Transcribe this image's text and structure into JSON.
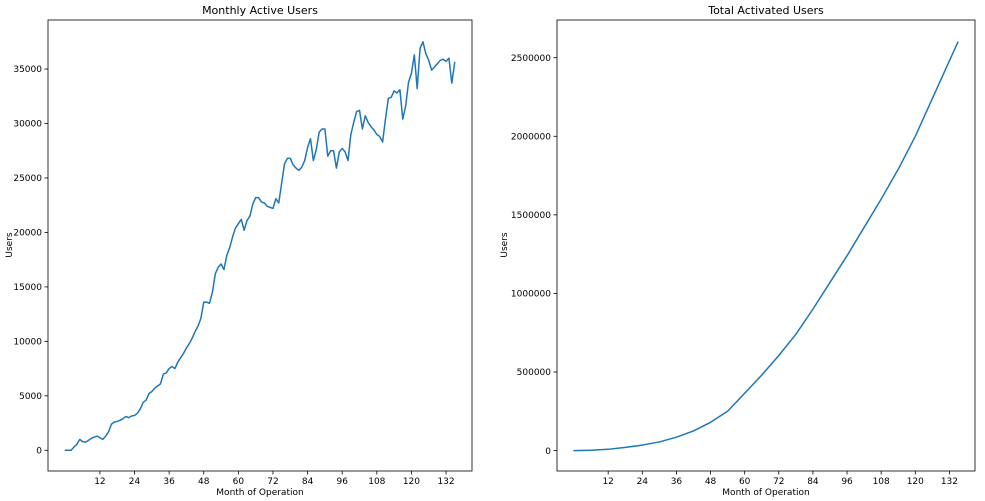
{
  "colors": {
    "series": "#1f77b4",
    "axis": "#000000",
    "background": "#ffffff"
  },
  "chart_data": [
    {
      "type": "line",
      "title": "Monthly Active Users",
      "xlabel": "Month of Operation",
      "ylabel": "Users",
      "xlim": [
        -6,
        141
      ],
      "ylim": [
        -1900,
        39500
      ],
      "xticks": [
        12,
        24,
        36,
        48,
        60,
        72,
        84,
        96,
        108,
        120,
        132
      ],
      "yticks": [
        0,
        5000,
        10000,
        15000,
        20000,
        25000,
        30000,
        35000
      ],
      "grid": false,
      "series": [
        {
          "color": "#1f77b4",
          "x": [
            0,
            1,
            2,
            3,
            4,
            5,
            6,
            7,
            8,
            9,
            10,
            11,
            12,
            13,
            14,
            15,
            16,
            17,
            18,
            19,
            20,
            21,
            22,
            23,
            24,
            25,
            26,
            27,
            28,
            29,
            30,
            31,
            32,
            33,
            34,
            35,
            36,
            37,
            38,
            39,
            40,
            41,
            42,
            43,
            44,
            45,
            46,
            47,
            48,
            49,
            50,
            51,
            52,
            53,
            54,
            55,
            56,
            57,
            58,
            59,
            60,
            61,
            62,
            63,
            64,
            65,
            66,
            67,
            68,
            69,
            70,
            71,
            72,
            73,
            74,
            75,
            76,
            77,
            78,
            79,
            80,
            81,
            82,
            83,
            84,
            85,
            86,
            87,
            88,
            89,
            90,
            91,
            92,
            93,
            94,
            95,
            96,
            97,
            98,
            99,
            100,
            101,
            102,
            103,
            104,
            105,
            106,
            107,
            108,
            109,
            110,
            111,
            112,
            113,
            114,
            115,
            116,
            117,
            118,
            119,
            120,
            121,
            122,
            123,
            124,
            125,
            126,
            127,
            128,
            129,
            130,
            131,
            132,
            133,
            134,
            135
          ],
          "y": [
            0,
            0,
            0,
            300,
            550,
            1000,
            800,
            750,
            900,
            1100,
            1200,
            1300,
            1150,
            1000,
            1300,
            1700,
            2400,
            2600,
            2650,
            2750,
            2900,
            3100,
            3000,
            3150,
            3200,
            3400,
            3800,
            4400,
            4600,
            5200,
            5400,
            5700,
            5900,
            6100,
            7000,
            7100,
            7500,
            7700,
            7500,
            8100,
            8500,
            8900,
            9400,
            9800,
            10300,
            10900,
            11400,
            12100,
            13600,
            13600,
            13500,
            14500,
            16200,
            16800,
            17100,
            16600,
            17900,
            18600,
            19600,
            20400,
            20800,
            21200,
            20200,
            21100,
            21500,
            22600,
            23200,
            23200,
            22800,
            22700,
            22400,
            22300,
            22200,
            23100,
            22700,
            24500,
            26300,
            26800,
            26800,
            26200,
            25900,
            25700,
            26000,
            26600,
            27800,
            28600,
            26600,
            27600,
            29200,
            29500,
            29500,
            27000,
            27500,
            27500,
            25900,
            27400,
            27700,
            27400,
            26600,
            29000,
            30100,
            31100,
            31200,
            29500,
            30700,
            30100,
            29700,
            29400,
            29000,
            28800,
            28300,
            30400,
            32300,
            32400,
            33000,
            32800,
            33100,
            30400,
            31600,
            33800,
            34600,
            36300,
            33200,
            36900,
            37500,
            36400,
            35800,
            34900,
            35200,
            35500,
            35800,
            35900,
            35700,
            36000,
            33700,
            35600
          ]
        }
      ]
    },
    {
      "type": "line",
      "title": "Total Activated Users",
      "xlabel": "Month of Operation",
      "ylabel": "Users",
      "xlim": [
        -6,
        141
      ],
      "ylim": [
        -130000,
        2740000
      ],
      "xticks": [
        12,
        24,
        36,
        48,
        60,
        72,
        84,
        96,
        108,
        120,
        132
      ],
      "yticks": [
        0,
        500000,
        1000000,
        1500000,
        2000000,
        2500000
      ],
      "grid": false,
      "series": [
        {
          "color": "#1f77b4",
          "x": [
            0,
            6,
            12,
            18,
            24,
            30,
            36,
            42,
            48,
            54,
            60,
            66,
            72,
            78,
            84,
            90,
            96,
            102,
            108,
            114,
            120,
            126,
            132,
            135
          ],
          "y": [
            0,
            2000,
            8000,
            20000,
            35000,
            55000,
            85000,
            125000,
            180000,
            250000,
            365000,
            480000,
            605000,
            740000,
            900000,
            1070000,
            1240000,
            1420000,
            1600000,
            1790000,
            2000000,
            2240000,
            2480000,
            2600000
          ]
        }
      ]
    }
  ]
}
